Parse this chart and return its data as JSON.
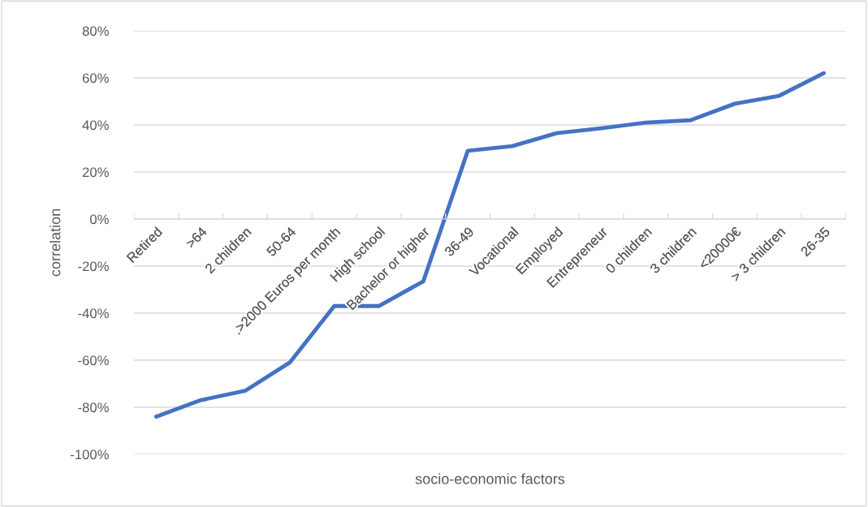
{
  "chart_data": {
    "type": "line",
    "xlabel": "socio-economic factors",
    "ylabel": "correlation",
    "categories": [
      "Retired",
      ">64",
      "2 children",
      "50-64",
      ".>2000 Euros per month",
      "High school",
      "Bachelor or higher",
      "36-49",
      "Vocational",
      "Employed",
      "Entrepreneur",
      "0 children",
      "3 children",
      "<20000€",
      "> 3 children",
      "26-35"
    ],
    "series": [
      {
        "color": "#4472c4",
        "values": [
          -84,
          -77,
          -73,
          -61,
          -37,
          -37,
          -26.5,
          29,
          31,
          36.5,
          38.6,
          41,
          42,
          49,
          52.4,
          62
        ]
      }
    ],
    "ylim": [
      -100,
      80
    ],
    "yticks": [
      {
        "value": -100,
        "label": "-100%"
      },
      {
        "value": -80,
        "label": "-80%"
      },
      {
        "value": -60,
        "label": "-60%"
      },
      {
        "value": -40,
        "label": "-40%"
      },
      {
        "value": -20,
        "label": "-20%"
      },
      {
        "value": 0,
        "label": "0%"
      },
      {
        "value": 20,
        "label": "20%"
      },
      {
        "value": 40,
        "label": "40%"
      },
      {
        "value": 60,
        "label": "60%"
      },
      {
        "value": 80,
        "label": "80%"
      }
    ],
    "grid": "y",
    "legend": false,
    "marker": "none",
    "line_style": "solid"
  }
}
